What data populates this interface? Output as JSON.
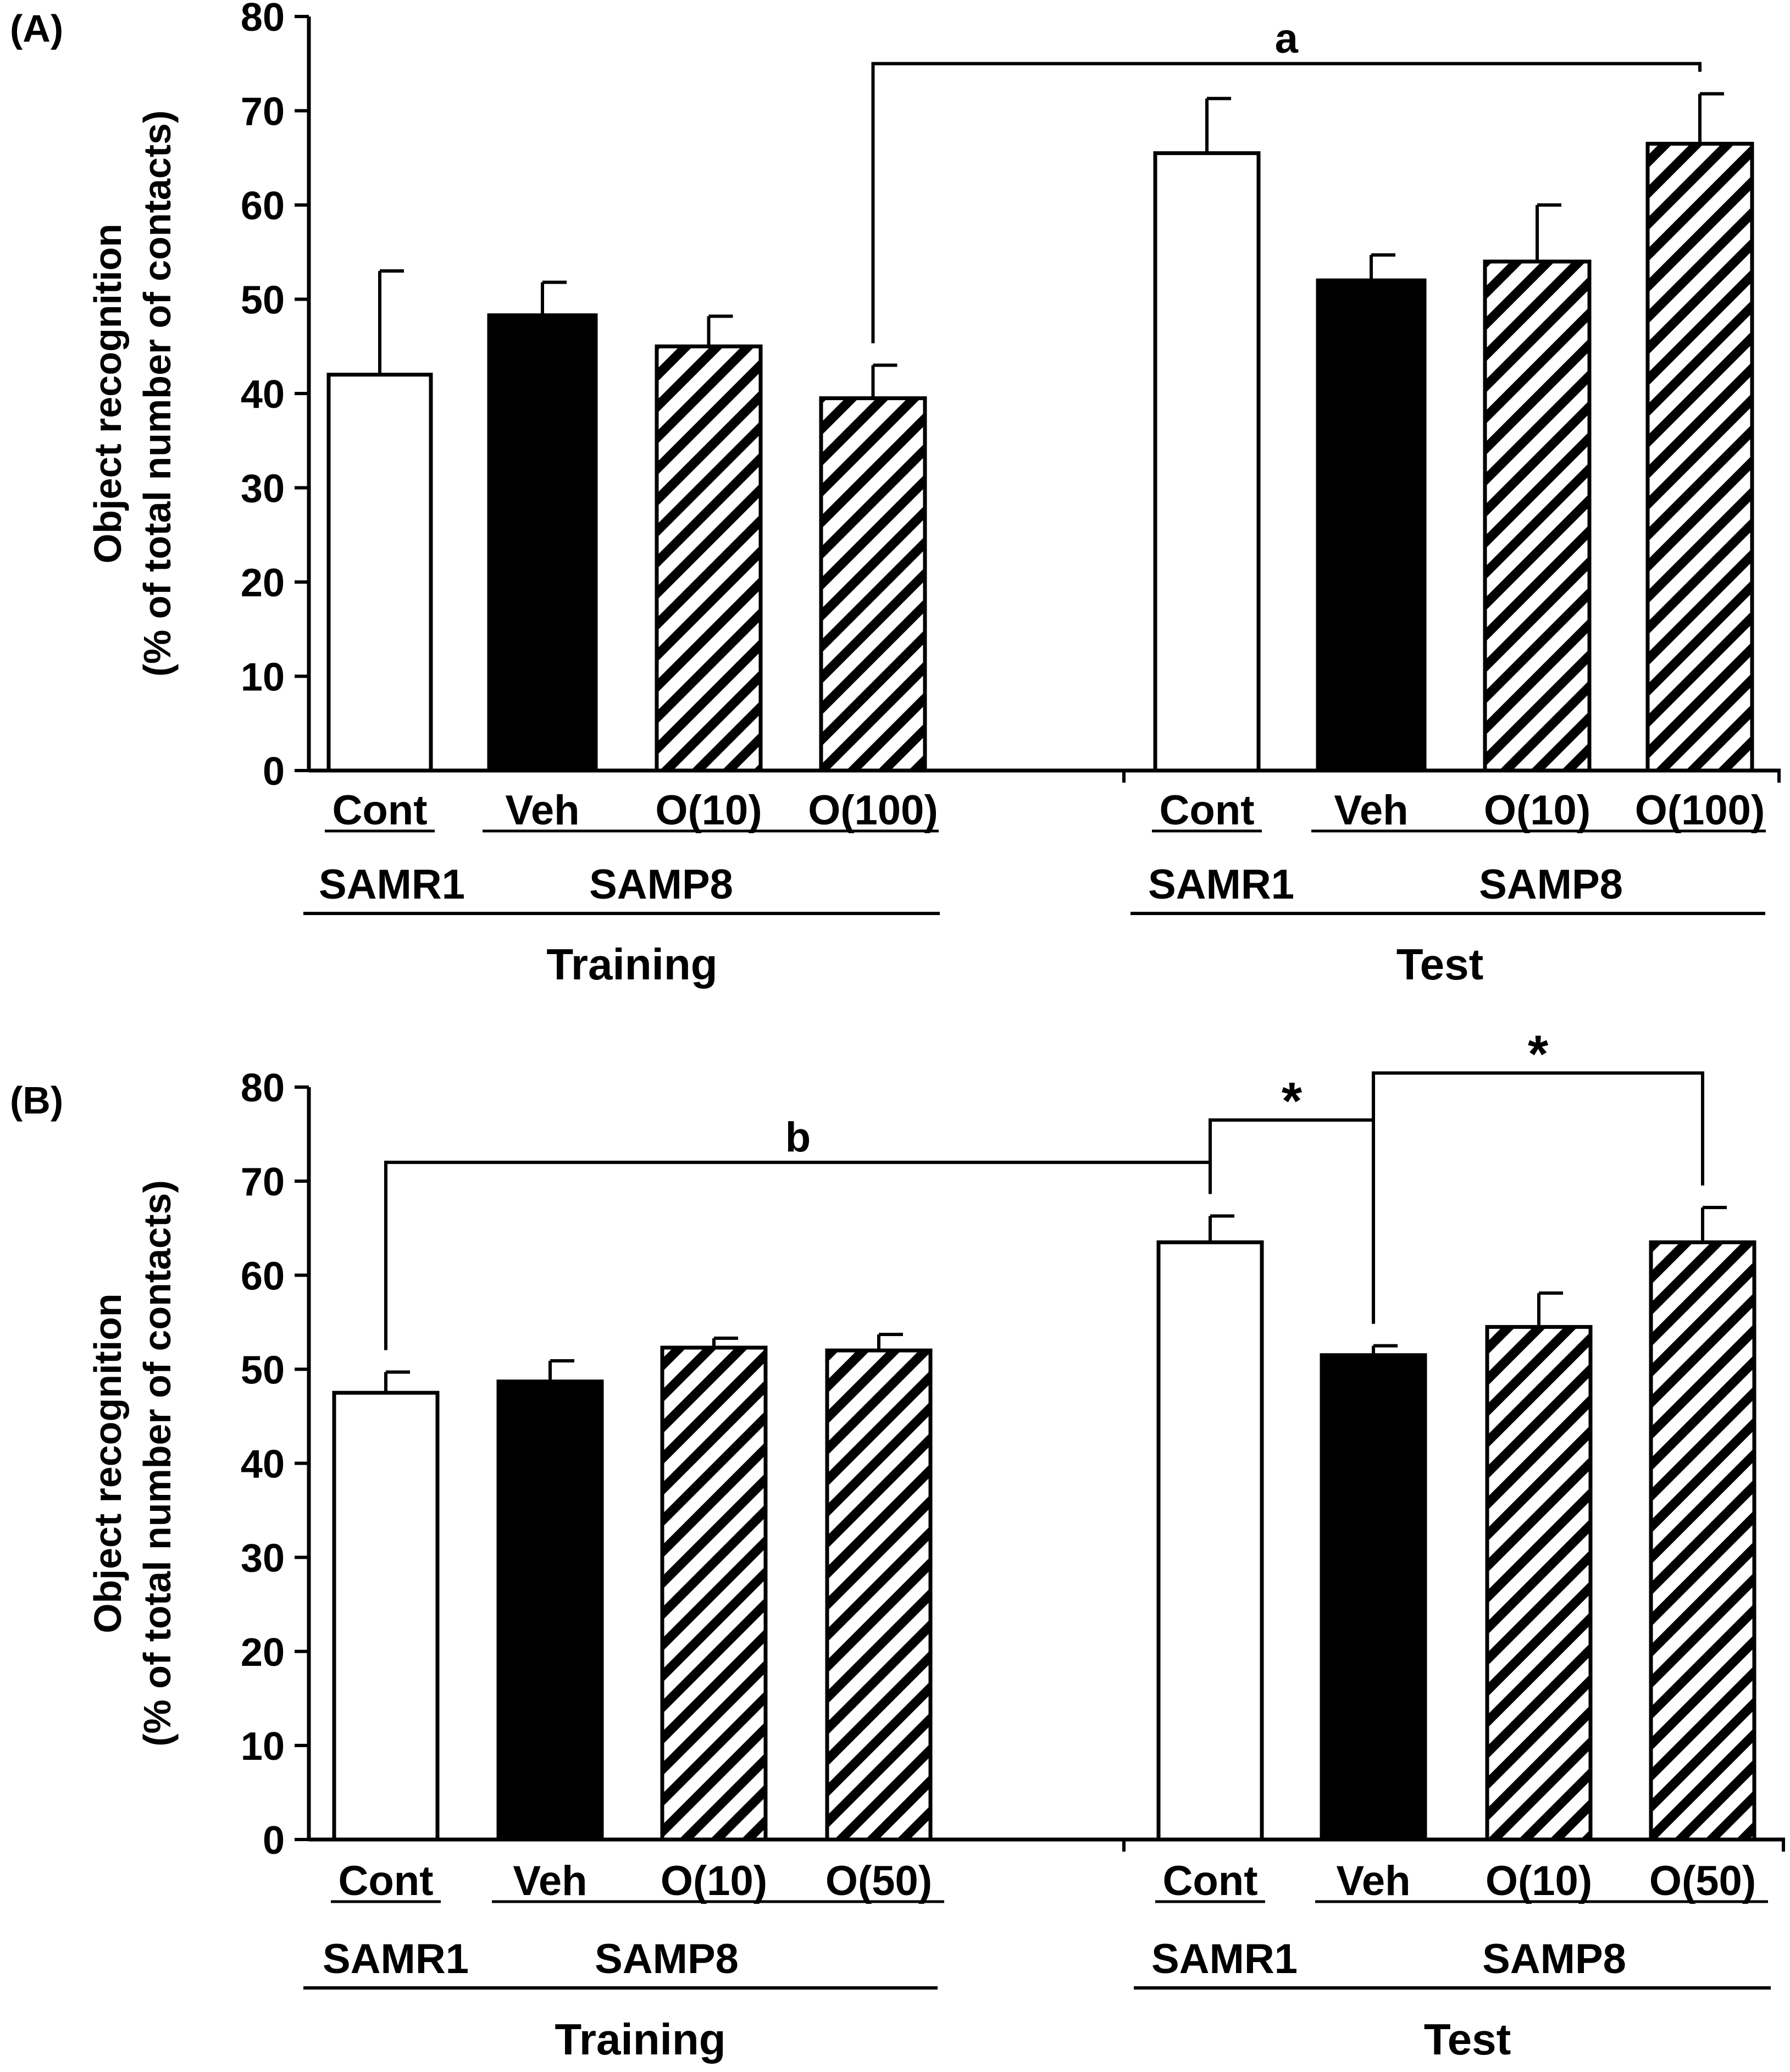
{
  "chart_data": [
    {
      "type": "bar",
      "panel_label": "(A)",
      "ylabel_line1": "Object recognition",
      "ylabel_line2": "(% of total number of contacts)",
      "ylim": [
        0,
        80
      ],
      "yticks": [
        0,
        10,
        20,
        30,
        40,
        50,
        60,
        70,
        80
      ],
      "groups": [
        {
          "phase": "Training",
          "strain_labels": [
            "SAMR1",
            "SAMP8"
          ],
          "bars": [
            {
              "label": "Cont",
              "strain": "SAMR1",
              "style": "open",
              "value": 42,
              "error": 11
            },
            {
              "label": "Veh",
              "strain": "SAMP8",
              "style": "solid",
              "value": 48.3,
              "error": 3.5
            },
            {
              "label": "O(10)",
              "strain": "SAMP8",
              "style": "hatched",
              "value": 45,
              "error": 3.2
            },
            {
              "label": "O(100)",
              "strain": "SAMP8",
              "style": "hatched",
              "value": 39.5,
              "error": 3.5
            }
          ]
        },
        {
          "phase": "Test",
          "strain_labels": [
            "SAMR1",
            "SAMP8"
          ],
          "bars": [
            {
              "label": "Cont",
              "strain": "SAMR1",
              "style": "open",
              "value": 65.5,
              "error": 5.8
            },
            {
              "label": "Veh",
              "strain": "SAMP8",
              "style": "solid",
              "value": 52,
              "error": 2.7
            },
            {
              "label": "O(10)",
              "strain": "SAMP8",
              "style": "hatched",
              "value": 54,
              "error": 6
            },
            {
              "label": "O(100)",
              "strain": "SAMP8",
              "style": "hatched",
              "value": 66.5,
              "error": 5.3
            }
          ]
        }
      ],
      "annotations": [
        {
          "text": "a",
          "from": "Training O(100)",
          "to": "Test O(100)",
          "level": 75
        }
      ]
    },
    {
      "type": "bar",
      "panel_label": "(B)",
      "ylabel_line1": "Object recognition",
      "ylabel_line2": "(% of total number of contacts)",
      "ylim": [
        0,
        80
      ],
      "yticks": [
        0,
        10,
        20,
        30,
        40,
        50,
        60,
        70,
        80
      ],
      "groups": [
        {
          "phase": "Training",
          "strain_labels": [
            "SAMR1",
            "SAMP8"
          ],
          "bars": [
            {
              "label": "Cont",
              "strain": "SAMR1",
              "style": "open",
              "value": 47.5,
              "error": 2.2
            },
            {
              "label": "Veh",
              "strain": "SAMP8",
              "style": "solid",
              "value": 48.7,
              "error": 2.2
            },
            {
              "label": "O(10)",
              "strain": "SAMP8",
              "style": "hatched",
              "value": 52.3,
              "error": 1
            },
            {
              "label": "O(50)",
              "strain": "SAMP8",
              "style": "hatched",
              "value": 52,
              "error": 1.7
            }
          ]
        },
        {
          "phase": "Test",
          "strain_labels": [
            "SAMR1",
            "SAMP8"
          ],
          "bars": [
            {
              "label": "Cont",
              "strain": "SAMR1",
              "style": "open",
              "value": 63.5,
              "error": 2.8
            },
            {
              "label": "Veh",
              "strain": "SAMP8",
              "style": "solid",
              "value": 51.5,
              "error": 1
            },
            {
              "label": "O(10)",
              "strain": "SAMP8",
              "style": "hatched",
              "value": 54.5,
              "error": 3.6
            },
            {
              "label": "O(50)",
              "strain": "SAMP8",
              "style": "hatched",
              "value": 63.5,
              "error": 3.7
            }
          ]
        }
      ],
      "annotations": [
        {
          "text": "b",
          "from": "Training Cont",
          "to": "Test Cont",
          "level": 72
        },
        {
          "text": "*",
          "from": "Test Cont",
          "to": "Test Veh",
          "level": 76.5
        },
        {
          "text": "*",
          "from": "Test Veh",
          "to": "Test O(50)",
          "level": 81.5
        }
      ]
    }
  ]
}
